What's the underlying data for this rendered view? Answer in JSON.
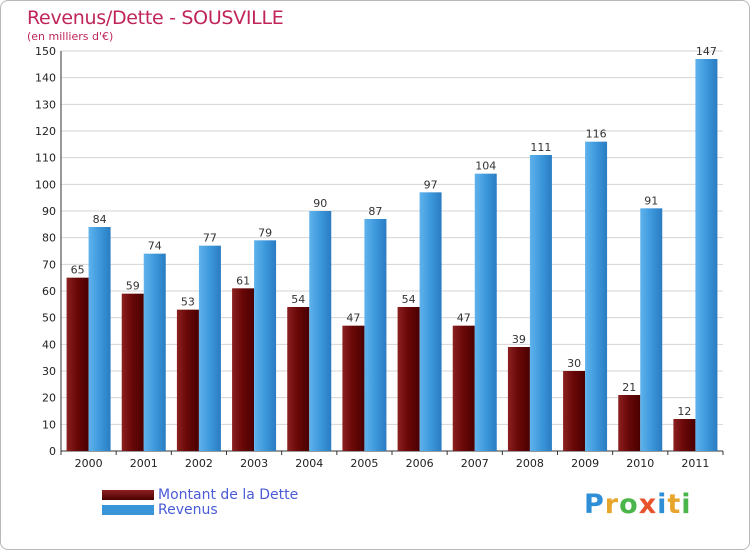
{
  "header": {
    "title": "Revenus/Dette - SOUSVILLE",
    "subtitle": "(en milliers d'€)"
  },
  "chart_data": {
    "type": "bar",
    "title": "Revenus/Dette - SOUSVILLE",
    "ylabel": "(en milliers d'€)",
    "xlabel": "",
    "categories": [
      "2000",
      "2001",
      "2002",
      "2003",
      "2004",
      "2005",
      "2006",
      "2007",
      "2008",
      "2009",
      "2010",
      "2011"
    ],
    "series": [
      {
        "name": "Montant de la Dette",
        "color": "#7a0a0a",
        "values": [
          65,
          59,
          53,
          61,
          54,
          47,
          54,
          47,
          39,
          30,
          21,
          12
        ]
      },
      {
        "name": "Revenus",
        "color": "#3a95d8",
        "values": [
          84,
          74,
          77,
          79,
          90,
          87,
          97,
          104,
          111,
          116,
          91,
          147
        ]
      }
    ],
    "ylim": [
      0,
      150
    ],
    "yticks": [
      0,
      10,
      20,
      30,
      40,
      50,
      60,
      70,
      80,
      90,
      100,
      110,
      120,
      130,
      140,
      150
    ],
    "grid": true,
    "legend": "bottom-left"
  },
  "legend": {
    "items": [
      {
        "label": "Montant de la Dette",
        "color": "#6b0000"
      },
      {
        "label": "Revenus",
        "color": "#3a95d8"
      }
    ]
  },
  "brand": {
    "letters": [
      "P",
      "r",
      "o",
      "x",
      "i",
      "t",
      "i"
    ]
  }
}
